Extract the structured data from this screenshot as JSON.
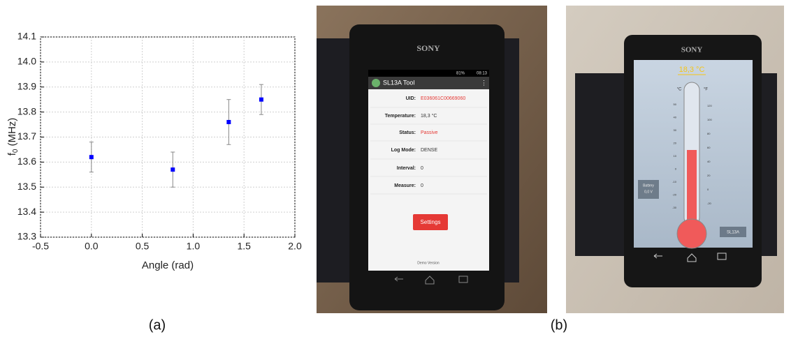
{
  "chart_data": {
    "type": "scatter",
    "x": [
      0,
      0.8,
      1.35,
      1.67
    ],
    "values": [
      13.62,
      13.57,
      13.76,
      13.85
    ],
    "errors": [
      0.06,
      0.07,
      0.09,
      0.06
    ],
    "color": "#0000ff",
    "error_color": "#888888",
    "x_label": "Angle (rad)",
    "y_label": "f",
    "y_label_sub": "0",
    "y_label_unit": "(MHz)",
    "xlim": [
      -0.5,
      2.0
    ],
    "xticks": [
      -0.5,
      {
        "value": 0,
        "label": "0.0"
      },
      0.5,
      {
        "value": 1,
        "label": "1.0"
      },
      1.5,
      {
        "value": 2,
        "label": "2.0"
      }
    ],
    "ylim": [
      13.3,
      14.1
    ],
    "yticks": [
      13.3,
      13.4,
      13.5,
      13.6,
      13.7,
      13.8,
      13.9,
      {
        "value": 14,
        "label": "14.0"
      },
      14.1
    ],
    "grid": true
  },
  "panel_labels": [
    "(a)",
    "(b)"
  ],
  "phone_left": {
    "brand": "SONY",
    "battery": "81%",
    "time": "08:13",
    "app_title": "SL13A Tool",
    "rows": [
      [
        "UID:",
        "E036061C00669060"
      ],
      [
        "Temperature:",
        "18,3 °C"
      ],
      [
        "Status:",
        "Passive"
      ],
      [
        "Log Mode:",
        "DENSE"
      ],
      [
        "Interval:",
        "0"
      ],
      [
        "Measure:",
        "0"
      ]
    ],
    "button": "Settings",
    "footer": "Demo Version"
  },
  "phone_right": {
    "brand": "SONY",
    "temperature": "18,3 °C",
    "unit_c": "°C",
    "unit_f": "°F",
    "scale_c": [
      "50",
      "40",
      "30",
      "20",
      "10",
      "0",
      "-10",
      "-20",
      "-30"
    ],
    "scale_f": [
      "120",
      "100",
      "80",
      "60",
      "40",
      "20",
      "0",
      "-20"
    ],
    "battery": "Battery",
    "battery_value": "0,0 V",
    "tag": "SL13A"
  }
}
